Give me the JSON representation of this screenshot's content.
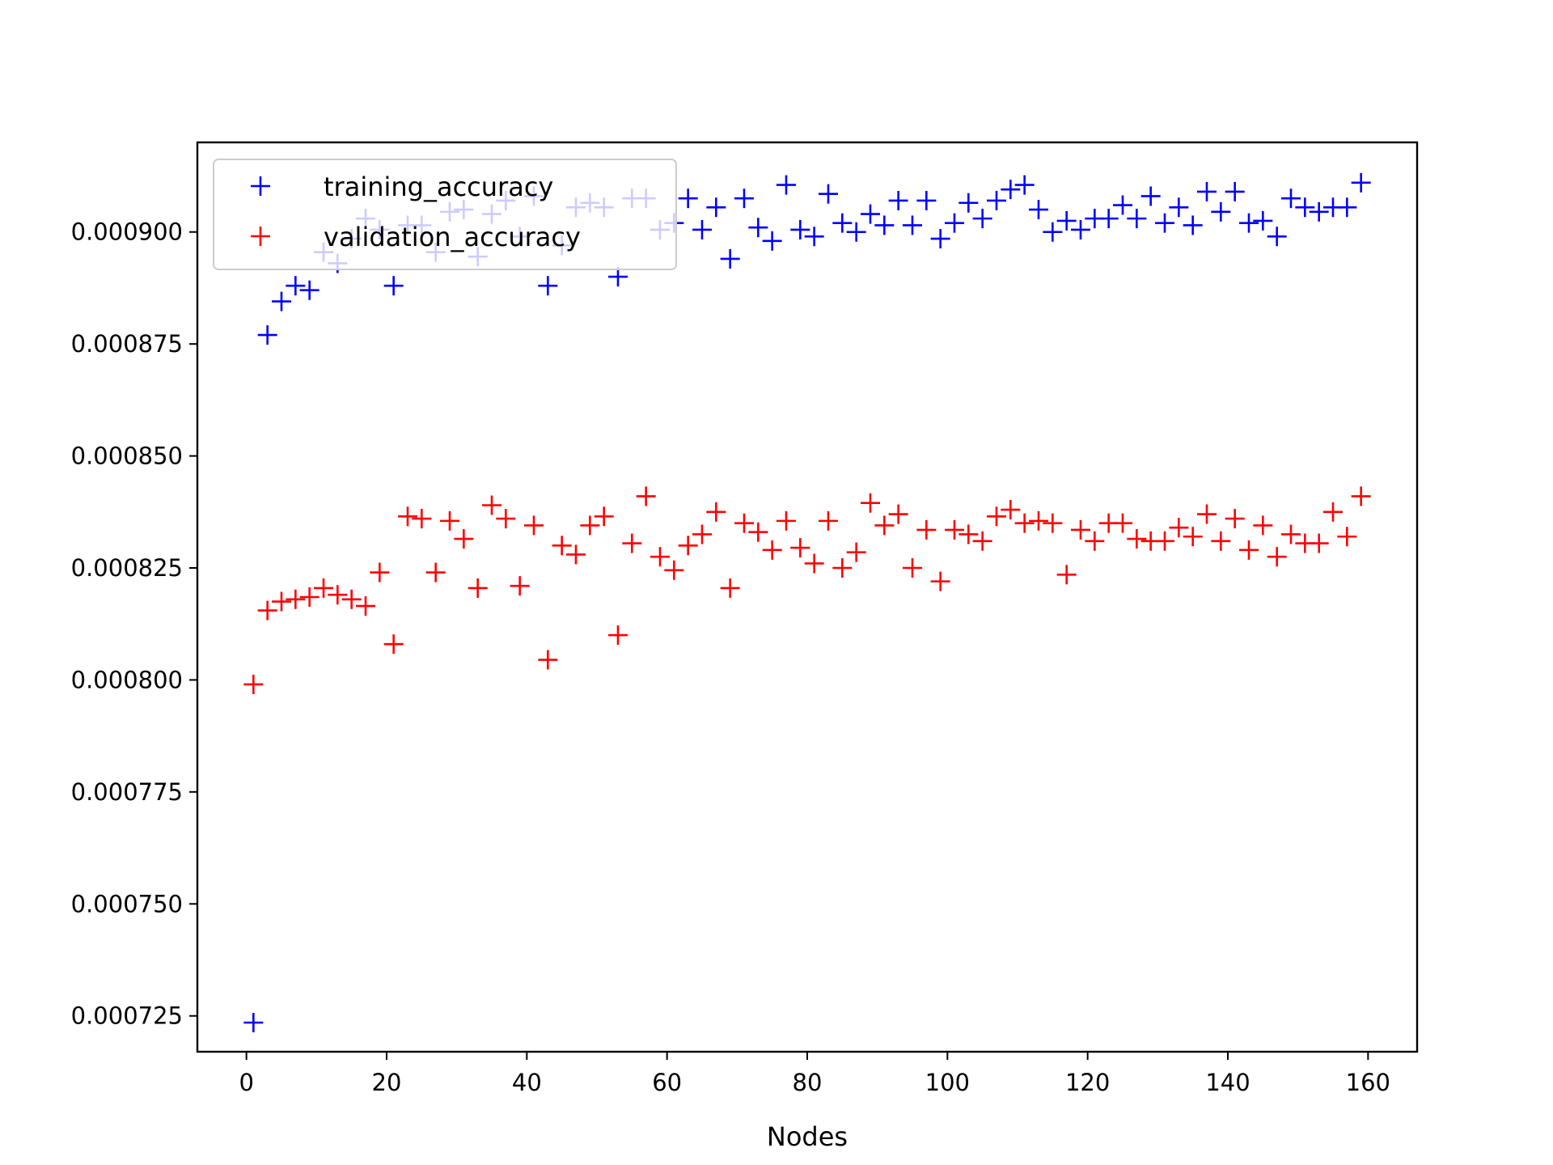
{
  "chart_data": {
    "type": "scatter",
    "title": "",
    "xlabel": "Nodes",
    "ylabel": "",
    "xlim": [
      -7,
      167
    ],
    "ylim": [
      0.000717,
      0.00092
    ],
    "xticks": [
      0,
      20,
      40,
      60,
      80,
      100,
      120,
      140,
      160
    ],
    "xtick_labels": [
      "0",
      "20",
      "40",
      "60",
      "80",
      "100",
      "120",
      "140",
      "160"
    ],
    "yticks": [
      0.000725,
      0.00075,
      0.000775,
      0.0008,
      0.000825,
      0.00085,
      0.000875,
      0.0009
    ],
    "ytick_labels": [
      "0.000725",
      "0.000750",
      "0.000775",
      "0.000800",
      "0.000825",
      "0.000850",
      "0.000875",
      "0.000900"
    ],
    "grid": false,
    "marker": "+",
    "legend": {
      "placement": "upper left",
      "alpha": 0.8
    },
    "series": [
      {
        "name": "training_accuracy",
        "color": "#0000ff",
        "x": [
          1,
          3,
          5,
          7,
          9,
          11,
          13,
          15,
          17,
          19,
          21,
          23,
          25,
          27,
          29,
          31,
          33,
          35,
          37,
          39,
          41,
          43,
          45,
          47,
          49,
          51,
          53,
          55,
          57,
          59,
          61,
          63,
          65,
          67,
          69,
          71,
          73,
          75,
          77,
          79,
          81,
          83,
          85,
          87,
          89,
          91,
          93,
          95,
          97,
          99,
          101,
          103,
          105,
          107,
          109,
          111,
          113,
          115,
          117,
          119,
          121,
          123,
          125,
          127,
          129,
          131,
          133,
          135,
          137,
          139,
          141,
          143,
          145,
          147,
          149,
          151,
          153,
          155,
          157,
          159
        ],
        "y": [
          0.0007235,
          0.000877,
          0.0008845,
          0.000888,
          0.000887,
          0.0008955,
          0.000893,
          0.0008985,
          0.000903,
          0.0009005,
          0.000888,
          0.0009015,
          0.0009015,
          0.0008955,
          0.0009045,
          0.000905,
          0.0008945,
          0.000904,
          0.000907,
          0.000899,
          0.000908,
          0.000888,
          0.000897,
          0.0009055,
          0.0009065,
          0.0009055,
          0.00089,
          0.0009075,
          0.0009075,
          0.0009005,
          0.000902,
          0.0009075,
          0.0009005,
          0.0009055,
          0.000894,
          0.0009075,
          0.000901,
          0.000898,
          0.0009105,
          0.0009005,
          0.000899,
          0.0009085,
          0.000902,
          0.0009,
          0.000904,
          0.0009015,
          0.000907,
          0.0009015,
          0.000907,
          0.0008985,
          0.000902,
          0.0009065,
          0.000903,
          0.000907,
          0.0009095,
          0.0009105,
          0.000905,
          0.0009,
          0.0009025,
          0.0009005,
          0.000903,
          0.000903,
          0.000906,
          0.000903,
          0.000908,
          0.000902,
          0.0009055,
          0.0009015,
          0.000909,
          0.0009045,
          0.000909,
          0.000902,
          0.0009025,
          0.000899,
          0.0009075,
          0.0009055,
          0.0009045,
          0.0009055,
          0.0009055,
          0.000911
        ]
      },
      {
        "name": "validation_accuracy",
        "color": "#ff0000",
        "x": [
          1,
          3,
          5,
          7,
          9,
          11,
          13,
          15,
          17,
          19,
          21,
          23,
          25,
          27,
          29,
          31,
          33,
          35,
          37,
          39,
          41,
          43,
          45,
          47,
          49,
          51,
          53,
          55,
          57,
          59,
          61,
          63,
          65,
          67,
          69,
          71,
          73,
          75,
          77,
          79,
          81,
          83,
          85,
          87,
          89,
          91,
          93,
          95,
          97,
          99,
          101,
          103,
          105,
          107,
          109,
          111,
          113,
          115,
          117,
          119,
          121,
          123,
          125,
          127,
          129,
          131,
          133,
          135,
          137,
          139,
          141,
          143,
          145,
          147,
          149,
          151,
          153,
          155,
          157,
          159
        ],
        "y": [
          0.000799,
          0.0008155,
          0.0008175,
          0.000818,
          0.0008185,
          0.0008205,
          0.000819,
          0.000818,
          0.0008165,
          0.000824,
          0.000808,
          0.0008365,
          0.000836,
          0.000824,
          0.0008355,
          0.0008315,
          0.0008205,
          0.000839,
          0.000836,
          0.000821,
          0.0008345,
          0.0008045,
          0.00083,
          0.000828,
          0.0008345,
          0.0008365,
          0.00081,
          0.0008305,
          0.000841,
          0.0008275,
          0.0008245,
          0.00083,
          0.0008325,
          0.0008375,
          0.0008205,
          0.000835,
          0.000833,
          0.000829,
          0.0008355,
          0.0008295,
          0.000826,
          0.0008355,
          0.000825,
          0.0008285,
          0.0008395,
          0.0008345,
          0.000837,
          0.000825,
          0.0008335,
          0.000822,
          0.0008335,
          0.0008325,
          0.000831,
          0.0008365,
          0.000838,
          0.000835,
          0.0008355,
          0.000835,
          0.0008235,
          0.0008335,
          0.000831,
          0.000835,
          0.000835,
          0.0008315,
          0.000831,
          0.000831,
          0.000834,
          0.000832,
          0.000837,
          0.000831,
          0.000836,
          0.000829,
          0.0008345,
          0.0008275,
          0.0008325,
          0.0008305,
          0.0008305,
          0.0008375,
          0.000832,
          0.000841
        ]
      }
    ]
  }
}
